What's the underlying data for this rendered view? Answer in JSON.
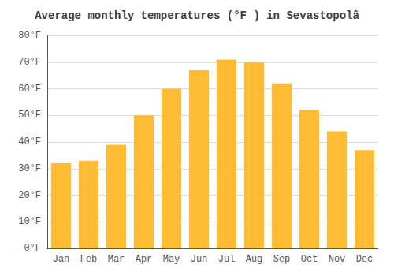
{
  "chart_data": {
    "type": "bar",
    "title": "Average monthly temperatures (°F ) in Sevastopolâ",
    "categories": [
      "Jan",
      "Feb",
      "Mar",
      "Apr",
      "May",
      "Jun",
      "Jul",
      "Aug",
      "Sep",
      "Oct",
      "Nov",
      "Dec"
    ],
    "values": [
      32,
      33,
      39,
      50,
      60,
      67,
      71,
      70,
      62,
      52,
      44,
      37
    ],
    "color": "#FFBB33",
    "ylim": [
      0,
      80
    ],
    "yticks": [
      {
        "value": 0,
        "label": "0°F"
      },
      {
        "value": 10,
        "label": "10°F"
      },
      {
        "value": 20,
        "label": "20°F"
      },
      {
        "value": 30,
        "label": "30°F"
      },
      {
        "value": 40,
        "label": "40°F"
      },
      {
        "value": 50,
        "label": "50°F"
      },
      {
        "value": 60,
        "label": "60°F"
      },
      {
        "value": 70,
        "label": "70°F"
      },
      {
        "value": 80,
        "label": "80°F"
      }
    ],
    "grid": true
  }
}
